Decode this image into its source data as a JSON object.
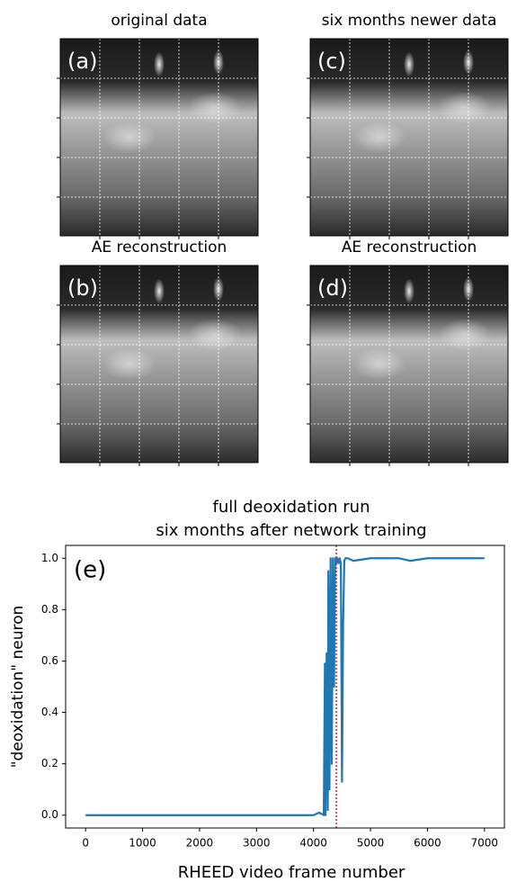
{
  "panels": [
    {
      "title": "original data",
      "label": "(a)"
    },
    {
      "title": "AE reconstruction",
      "label": "(b)"
    },
    {
      "title": "six months newer data",
      "label": "(c)"
    },
    {
      "title": "AE reconstruction",
      "label": "(d)"
    }
  ],
  "chart_data": {
    "type": "line",
    "title": "full deoxidation run",
    "subtitle": "six months after network training",
    "annotation": "(e)",
    "x_label": "RHEED video frame number",
    "y_label": "\"deoxidation\" neuron",
    "x": [
      0,
      4000,
      4100,
      4180,
      4200,
      4210,
      4230,
      4250,
      4260,
      4280,
      4300,
      4320,
      4340,
      4360,
      4380,
      4400,
      4420,
      4440,
      4460,
      4480,
      4500,
      4520,
      4540,
      4560,
      4600,
      4700,
      5000,
      5500,
      5700,
      6000,
      6500,
      7000
    ],
    "values": [
      0,
      0,
      0.01,
      0,
      0.59,
      0,
      0.63,
      0.02,
      0.95,
      0.1,
      1.0,
      0.2,
      1.0,
      0.5,
      1.0,
      0.98,
      1.0,
      0.98,
      1.0,
      0.98,
      0.13,
      0.75,
      0.99,
      1.0,
      1.0,
      0.99,
      1.0,
      1.0,
      0.99,
      1.0,
      1.0,
      1.0
    ],
    "color": "#1f77b4",
    "vline": {
      "x": 4400,
      "color": "#d62728"
    },
    "xlim": [
      -350,
      7350
    ],
    "ylim": [
      -0.05,
      1.05
    ],
    "xticks": [
      0,
      1000,
      2000,
      3000,
      4000,
      5000,
      6000,
      7000
    ],
    "yticks": [
      {
        "value": 0,
        "label": "0.0"
      },
      0.2,
      0.4,
      0.6,
      0.8,
      {
        "value": 1,
        "label": "1.0"
      }
    ]
  }
}
